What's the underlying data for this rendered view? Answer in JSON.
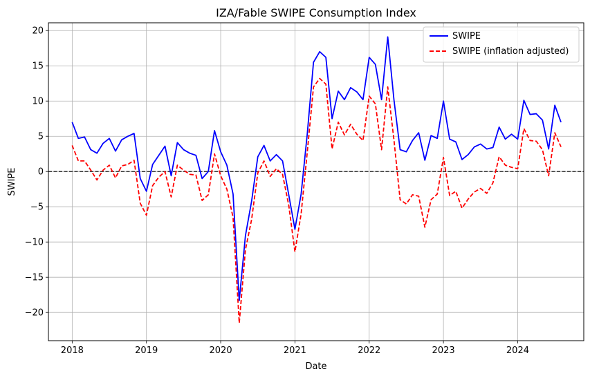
{
  "chart_data": {
    "type": "line",
    "title": "IZA/Fable SWIPE Consumption Index",
    "xlabel": "Date",
    "ylabel": "SWIPE",
    "xlim": [
      2017.68,
      2024.89
    ],
    "ylim": [
      -24.0,
      21.1
    ],
    "x_ticks": [
      2018,
      2019,
      2020,
      2021,
      2022,
      2023,
      2024
    ],
    "x_tick_labels": [
      "2018",
      "2019",
      "2020",
      "2021",
      "2022",
      "2023",
      "2024"
    ],
    "y_ticks": [
      -20,
      -15,
      -10,
      -5,
      0,
      5,
      10,
      15,
      20
    ],
    "y_tick_labels": [
      "−20",
      "−15",
      "−10",
      "−5",
      "0",
      "5",
      "10",
      "15",
      "20"
    ],
    "grid": true,
    "legend_position": "top-right",
    "reference_line": {
      "y": 0,
      "style": "dashed",
      "color": "#000000"
    },
    "series": [
      {
        "name": "SWIPE",
        "color": "#0000ff",
        "style": "solid",
        "start_year": 2018,
        "start_month": 1,
        "frequency": "monthly",
        "values": [
          7.0,
          4.7,
          4.9,
          3.1,
          2.6,
          4.0,
          4.7,
          2.9,
          4.5,
          5.0,
          5.4,
          -1.0,
          -2.8,
          1.0,
          2.3,
          3.6,
          -0.6,
          4.1,
          3.1,
          2.6,
          2.3,
          -1.0,
          0.0,
          5.8,
          2.8,
          0.9,
          -3.2,
          -18.3,
          -9.1,
          -4.2,
          2.1,
          3.7,
          1.5,
          2.4,
          1.5,
          -3.3,
          -8.2,
          -3.2,
          5.4,
          15.5,
          17.0,
          16.2,
          7.5,
          11.4,
          10.2,
          11.9,
          11.3,
          10.2,
          16.2,
          15.2,
          10.2,
          19.1,
          10.2,
          3.1,
          2.8,
          4.4,
          5.5,
          1.6,
          5.1,
          4.7,
          10.0,
          4.6,
          4.2,
          1.7,
          2.4,
          3.5,
          3.9,
          3.2,
          3.4,
          6.3,
          4.6,
          5.3,
          4.6,
          10.1,
          8.1,
          8.2,
          7.3,
          3.2,
          9.4,
          7.0
        ]
      },
      {
        "name": "SWIPE (inflation adjusted)",
        "color": "#ff0000",
        "style": "dashed",
        "start_year": 2018,
        "start_month": 1,
        "frequency": "monthly",
        "values": [
          3.7,
          1.5,
          1.5,
          0.2,
          -1.2,
          0.2,
          0.9,
          -0.9,
          0.8,
          1.0,
          1.6,
          -4.5,
          -6.2,
          -2.0,
          -0.8,
          0.0,
          -3.6,
          0.9,
          0.2,
          -0.4,
          -0.5,
          -4.1,
          -3.3,
          2.5,
          -0.6,
          -2.5,
          -6.5,
          -21.5,
          -11.1,
          -6.8,
          -0.2,
          1.5,
          -0.7,
          0.4,
          -0.4,
          -4.8,
          -11.4,
          -6.0,
          2.8,
          12.0,
          13.2,
          12.4,
          3.2,
          7.0,
          5.2,
          6.7,
          5.3,
          4.4,
          10.7,
          9.6,
          3.1,
          12.0,
          4.5,
          -4.0,
          -4.6,
          -3.3,
          -3.5,
          -7.9,
          -4.0,
          -3.2,
          2.0,
          -3.4,
          -2.8,
          -5.2,
          -3.9,
          -2.9,
          -2.4,
          -3.1,
          -1.6,
          2.1,
          0.9,
          0.6,
          0.4,
          6.1,
          4.4,
          4.3,
          3.1,
          -0.6,
          5.5,
          3.5
        ]
      }
    ]
  }
}
